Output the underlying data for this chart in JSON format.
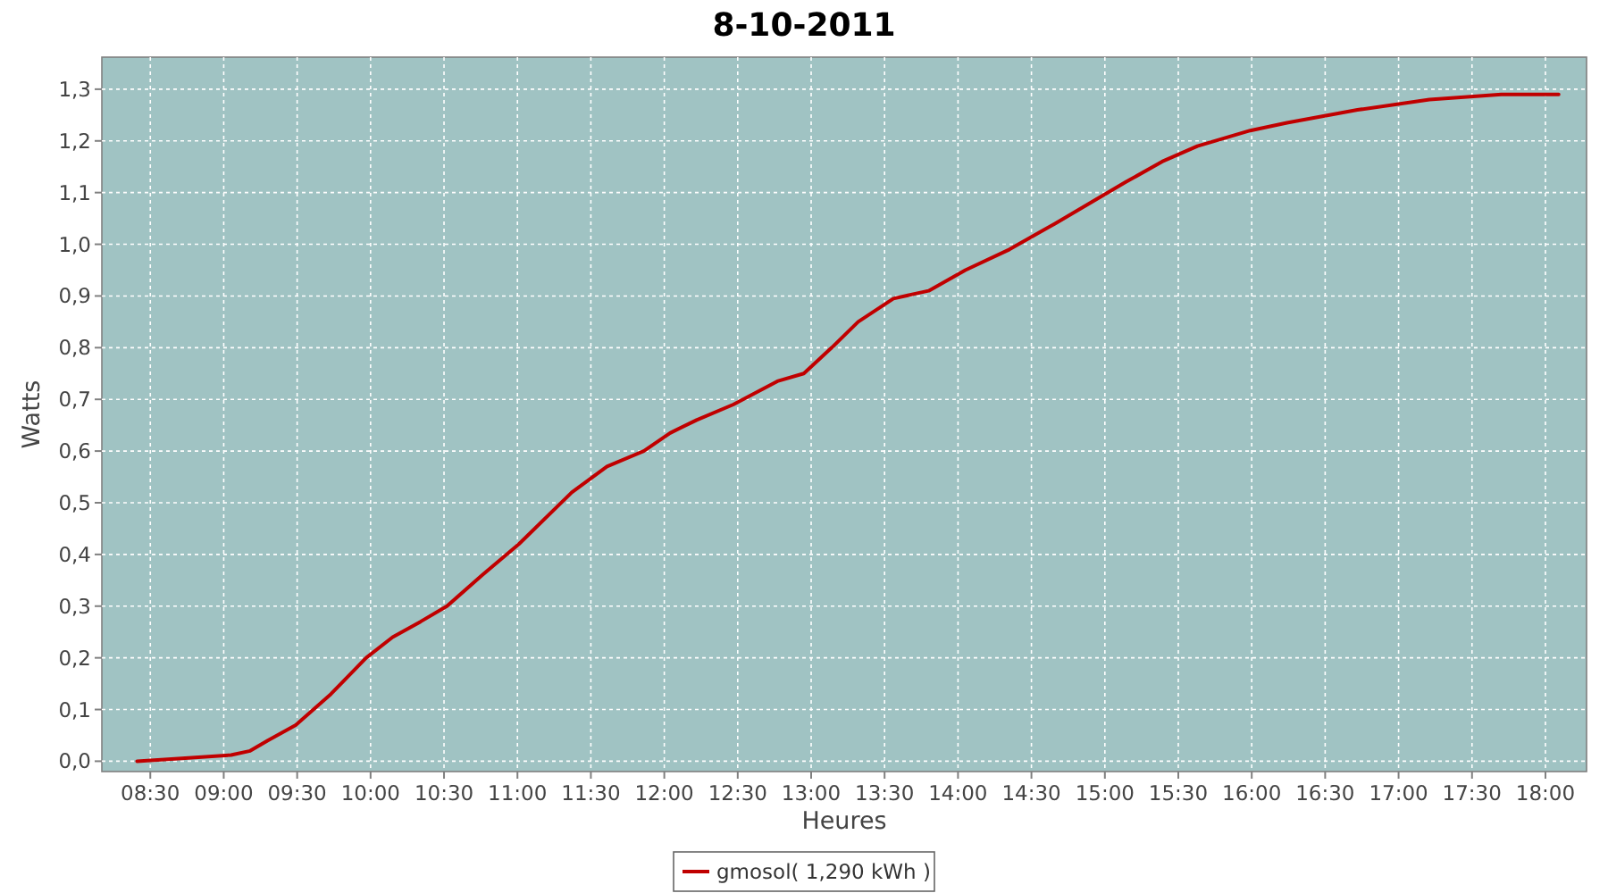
{
  "chart_data": {
    "type": "line",
    "title": "8-10-2011",
    "xlabel": "Heures",
    "ylabel": "Watts",
    "xlim": [
      8.17,
      18.28
    ],
    "ylim": [
      -0.02,
      1.362
    ],
    "xticks": [
      {
        "value": 8.5,
        "label": "08:30"
      },
      {
        "value": 9,
        "label": "09:00"
      },
      {
        "value": 9.5,
        "label": "09:30"
      },
      {
        "value": 10,
        "label": "10:00"
      },
      {
        "value": 10.5,
        "label": "10:30"
      },
      {
        "value": 11,
        "label": "11:00"
      },
      {
        "value": 11.5,
        "label": "11:30"
      },
      {
        "value": 12,
        "label": "12:00"
      },
      {
        "value": 12.5,
        "label": "12:30"
      },
      {
        "value": 13,
        "label": "13:00"
      },
      {
        "value": 13.5,
        "label": "13:30"
      },
      {
        "value": 14,
        "label": "14:00"
      },
      {
        "value": 14.5,
        "label": "14:30"
      },
      {
        "value": 15,
        "label": "15:00"
      },
      {
        "value": 15.5,
        "label": "15:30"
      },
      {
        "value": 16,
        "label": "16:00"
      },
      {
        "value": 16.5,
        "label": "16:30"
      },
      {
        "value": 17,
        "label": "17:00"
      },
      {
        "value": 17.5,
        "label": "17:30"
      },
      {
        "value": 18,
        "label": "18:00"
      }
    ],
    "yticks": [
      {
        "value": 0,
        "label": "0,0"
      },
      {
        "value": 0.1,
        "label": "0,1"
      },
      {
        "value": 0.2,
        "label": "0,2"
      },
      {
        "value": 0.3,
        "label": "0,3"
      },
      {
        "value": 0.4,
        "label": "0,4"
      },
      {
        "value": 0.5,
        "label": "0,5"
      },
      {
        "value": 0.6,
        "label": "0,6"
      },
      {
        "value": 0.7,
        "label": "0,7"
      },
      {
        "value": 0.8,
        "label": "0,8"
      },
      {
        "value": 0.9,
        "label": "0,9"
      },
      {
        "value": 1,
        "label": "1,0"
      },
      {
        "value": 1.1,
        "label": "1,1"
      },
      {
        "value": 1.2,
        "label": "1,2"
      },
      {
        "value": 1.3,
        "label": "1,3"
      }
    ],
    "grid": true,
    "legend": "bottom",
    "marker": "none",
    "line_style": "solid",
    "x": [
      8.41,
      8.69,
      9.05,
      9.18,
      9.3,
      9.49,
      9.73,
      9.97,
      10.15,
      10.34,
      10.52,
      10.76,
      11.01,
      11.37,
      11.61,
      11.86,
      12.04,
      12.22,
      12.47,
      12.77,
      12.95,
      13.14,
      13.32,
      13.56,
      13.8,
      14.05,
      14.35,
      14.66,
      14.9,
      15.14,
      15.39,
      15.63,
      15.99,
      16.24,
      16.72,
      17.21,
      17.7,
      18.09
    ],
    "series": [
      {
        "name": "gmosol( 1,290 kWh )",
        "color": "#c00000",
        "values": [
          0,
          0.005,
          0.012,
          0.02,
          0.04,
          0.07,
          0.13,
          0.2,
          0.24,
          0.27,
          0.3,
          0.36,
          0.42,
          0.52,
          0.57,
          0.6,
          0.635,
          0.66,
          0.69,
          0.735,
          0.75,
          0.8,
          0.85,
          0.895,
          0.91,
          0.95,
          0.99,
          1.04,
          1.08,
          1.12,
          1.16,
          1.19,
          1.22,
          1.235,
          1.26,
          1.28,
          1.29,
          1.29
        ]
      }
    ]
  }
}
